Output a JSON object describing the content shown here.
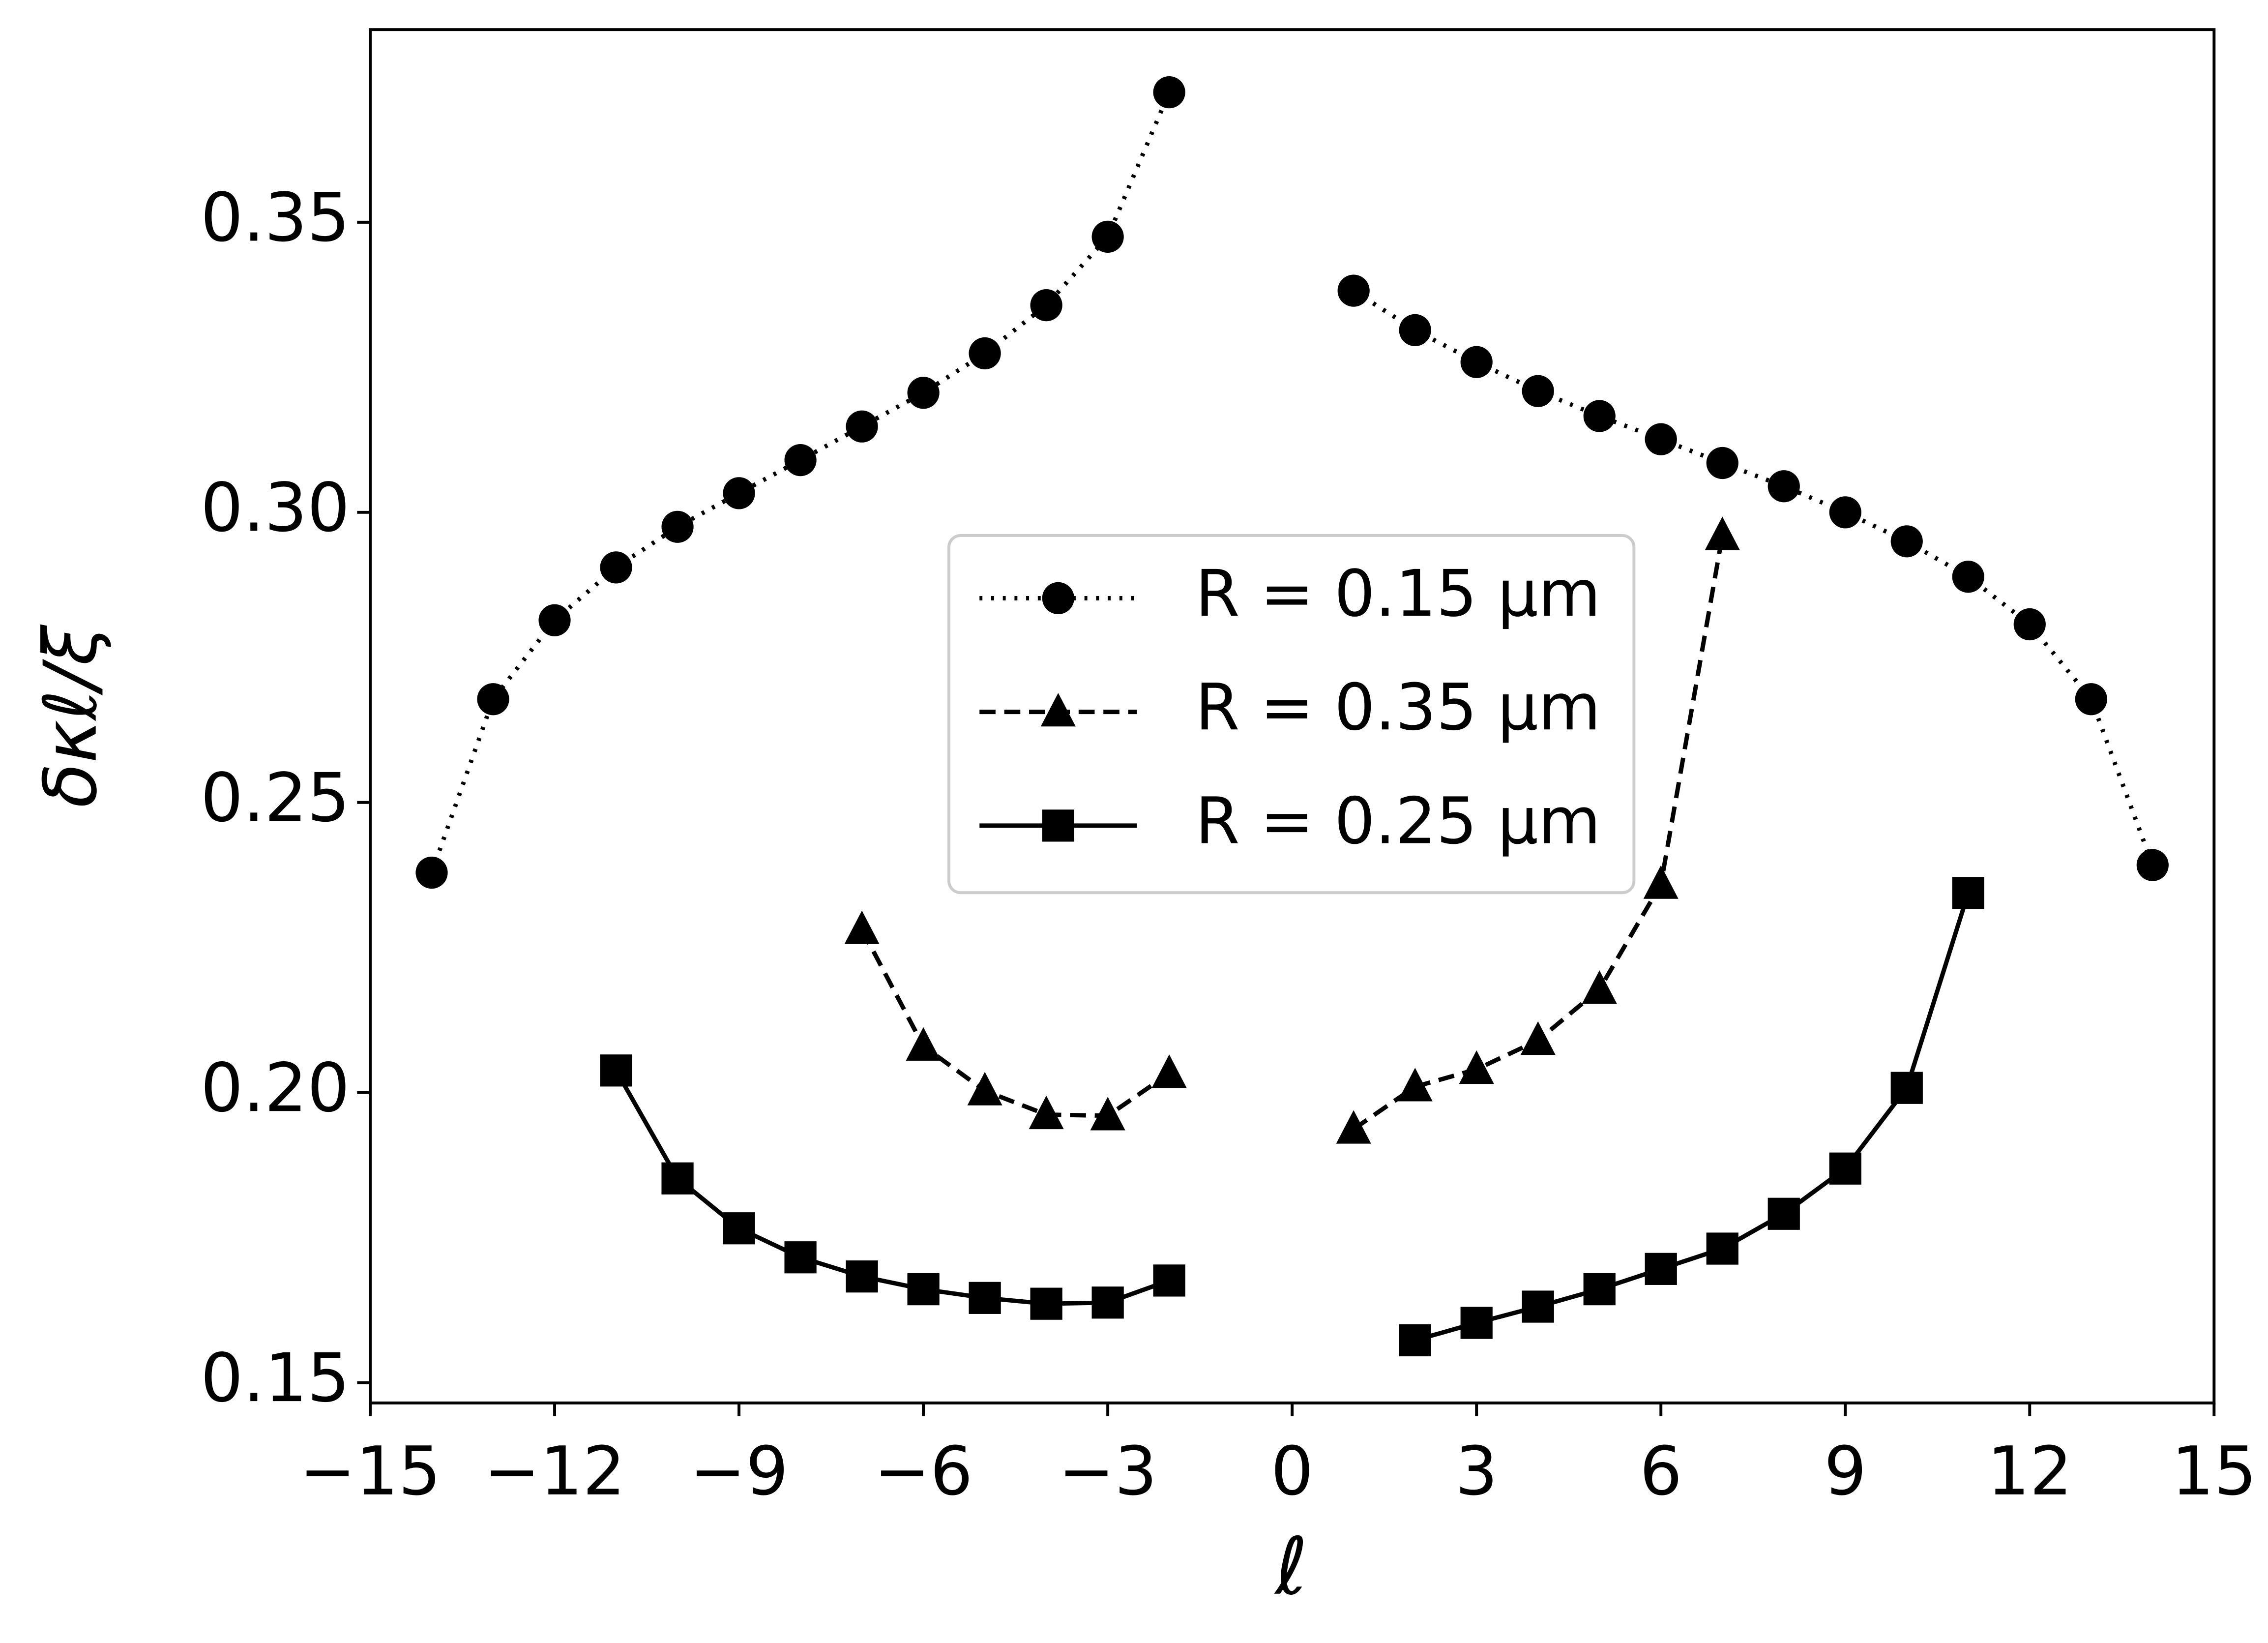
{
  "chart_data": {
    "type": "line",
    "x_label": "ℓ",
    "y_label": "δκℓ/ξ",
    "x": [
      -14,
      -13,
      -12,
      -11,
      -10,
      -9,
      -8,
      -7,
      -6,
      -5,
      -4,
      -3,
      -2,
      -1,
      0,
      1,
      2,
      3,
      4,
      5,
      6,
      7,
      8,
      9,
      10,
      11,
      12,
      13,
      14
    ],
    "series": [
      {
        "name": "R = 0.15 μm",
        "color": "#000000",
        "marker": "circle",
        "linestyle": "dotted",
        "values": [
          0.2379,
          0.2678,
          0.2814,
          0.2905,
          0.2975,
          0.3033,
          0.309,
          0.3148,
          0.3206,
          0.3274,
          0.3357,
          0.3475,
          0.3724,
          null,
          null,
          0.3382,
          0.3314,
          0.3259,
          0.3209,
          0.3166,
          0.3126,
          0.3085,
          0.3045,
          0.3,
          0.295,
          0.2889,
          0.2807,
          0.2678,
          0.2392
        ]
      },
      {
        "name": "R = 0.35 μm",
        "color": "#000000",
        "marker": "triangle",
        "linestyle": "dashed",
        "values": [
          null,
          null,
          null,
          null,
          null,
          null,
          null,
          0.2281,
          0.208,
          0.2003,
          0.1962,
          0.196,
          0.2033,
          null,
          null,
          0.1937,
          0.201,
          0.204,
          0.209,
          0.2178,
          0.2359,
          0.296,
          null,
          null,
          null,
          null,
          null,
          null,
          null
        ]
      },
      {
        "name": "R = 0.25 μm",
        "color": "#000000",
        "marker": "square",
        "linestyle": "solid",
        "values": [
          null,
          null,
          null,
          0.2038,
          0.1852,
          0.1766,
          0.1716,
          0.1683,
          0.1661,
          0.1646,
          0.1636,
          0.1638,
          0.1676,
          null,
          null,
          null,
          0.1573,
          0.1603,
          0.1631,
          0.1661,
          0.1696,
          0.1731,
          0.1791,
          0.1869,
          0.2008,
          0.2344,
          null,
          null,
          null
        ]
      }
    ],
    "xlim": [
      -15,
      15
    ],
    "ylim": [
      0.1465,
      0.3832
    ],
    "xticks": [
      {
        "value": -15,
        "label": "−15"
      },
      {
        "value": -12,
        "label": "−12"
      },
      {
        "value": -9,
        "label": "−9"
      },
      {
        "value": -6,
        "label": "−6"
      },
      {
        "value": -3,
        "label": "−3"
      },
      0,
      3,
      6,
      9,
      12,
      15
    ],
    "yticks": [
      0.15,
      {
        "value": 0.2,
        "label": "0.20"
      },
      0.25,
      {
        "value": 0.3,
        "label": "0.30"
      },
      0.35
    ],
    "legend": "center",
    "grid": false
  }
}
